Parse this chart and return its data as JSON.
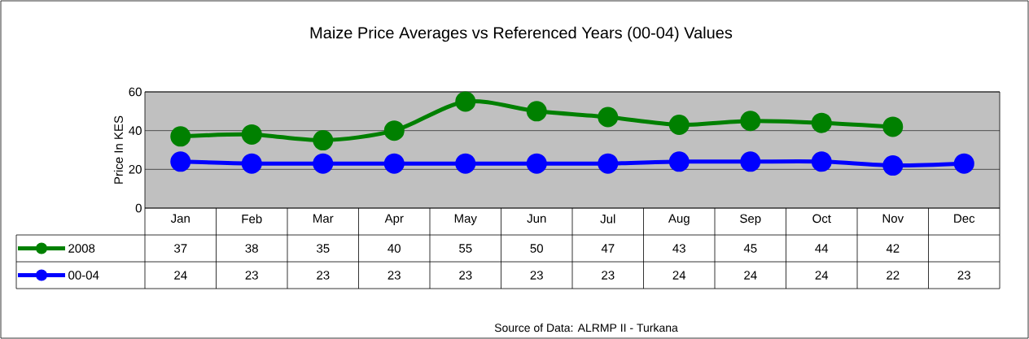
{
  "chart_data": {
    "type": "line",
    "title": "Maize Price Averages vs Referenced Years (00-04) Values",
    "ylabel": "Price In KES",
    "categories": [
      "Jan",
      "Feb",
      "Mar",
      "Apr",
      "May",
      "Jun",
      "Jul",
      "Aug",
      "Sep",
      "Oct",
      "Nov",
      "Dec"
    ],
    "series": [
      {
        "name": "2008",
        "color": "#008000",
        "values": [
          37,
          38,
          35,
          40,
          55,
          50,
          47,
          43,
          45,
          44,
          42,
          null
        ]
      },
      {
        "name": "00-04",
        "color": "#0000ff",
        "values": [
          24,
          23,
          23,
          23,
          23,
          23,
          23,
          24,
          24,
          24,
          22,
          23
        ]
      }
    ],
    "ylim": [
      0,
      60
    ],
    "yticks": [
      0,
      20,
      40,
      60
    ],
    "grid": "y",
    "legend": "left",
    "marker": "circle",
    "line_style": "solid",
    "data_labels": true,
    "annotations": [
      "Source of Data: ALRMP II - Turkana"
    ]
  }
}
